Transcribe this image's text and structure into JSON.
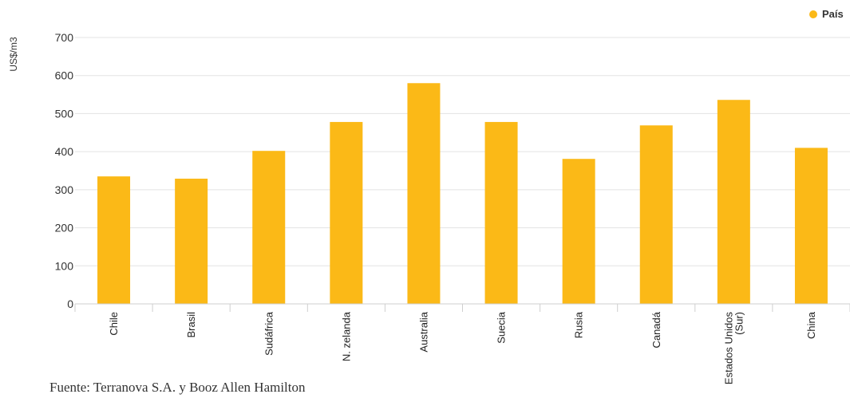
{
  "chart_data": {
    "type": "bar",
    "categories": [
      "Chile",
      "Brasil",
      "Sudáfrica",
      "N. zelanda",
      "Australia",
      "Suecia",
      "Rusia",
      "Canadá",
      "Estados Unidos (Sur)",
      "China"
    ],
    "category_lines": [
      [
        "Chile"
      ],
      [
        "Brasil"
      ],
      [
        "Sudáfrica"
      ],
      [
        "N. zelanda"
      ],
      [
        "Australia"
      ],
      [
        "Suecia"
      ],
      [
        "Rusia"
      ],
      [
        "Canadá"
      ],
      [
        "Estados Unidos",
        "(Sur)"
      ],
      [
        "China"
      ]
    ],
    "series": [
      {
        "name": "País",
        "values": [
          335,
          329,
          402,
          478,
          580,
          478,
          381,
          469,
          536,
          410
        ]
      }
    ],
    "ylabel": "US$/m3",
    "ylim": [
      0,
      700
    ],
    "yticks": [
      0,
      100,
      200,
      300,
      400,
      500,
      600,
      700
    ],
    "grid": true,
    "legend_position": "top-right",
    "bar_color": "#FBB917"
  },
  "source": "Fuente: Terranova S.A. y Booz Allen Hamilton"
}
